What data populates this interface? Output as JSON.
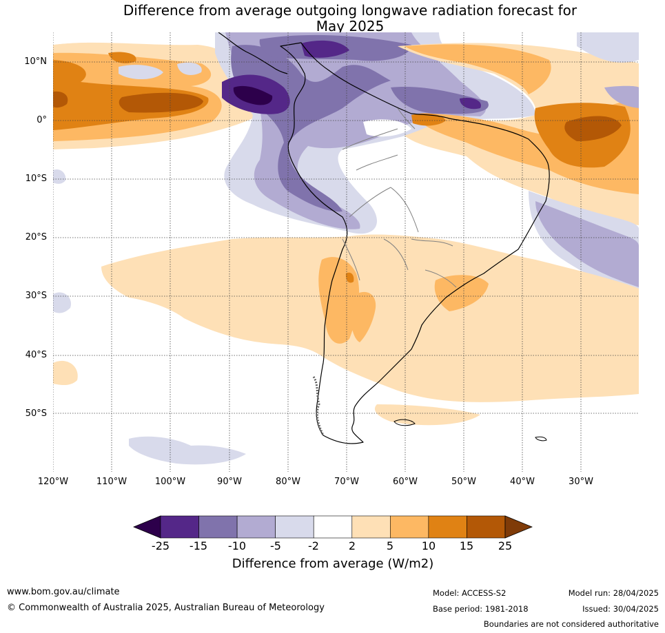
{
  "title_line1": "Difference from average outgoing longwave radiation forecast for",
  "title_line2": "May 2025",
  "lat_labels": [
    "10°N",
    "0°",
    "10°S",
    "20°S",
    "30°S",
    "40°S",
    "50°S"
  ],
  "lon_labels": [
    "120°W",
    "110°W",
    "100°W",
    "90°W",
    "80°W",
    "70°W",
    "60°W",
    "50°W",
    "40°W",
    "30°W"
  ],
  "colorbar": {
    "ticks": [
      "-25",
      "-15",
      "-10",
      "-5",
      "-2",
      "2",
      "5",
      "10",
      "15",
      "25"
    ],
    "colors": [
      "#2d004b",
      "#542788",
      "#8073ac",
      "#b2abd2",
      "#d8daeb",
      "#ffffff",
      "#fee0b6",
      "#fdb863",
      "#e08214",
      "#b35806",
      "#7f3b08"
    ],
    "label": "Difference from average (W/m2)"
  },
  "footer": {
    "url": "www.bom.gov.au/climate",
    "copyright": "© Commonwealth of Australia 2025, Australian Bureau of Meteorology",
    "model": "Model: ACCESS-S2",
    "base_period": "Base period: 1981-2018",
    "model_run": "Model run: 28/04/2025",
    "issued": "Issued: 30/04/2025",
    "disclaimer": "Boundaries are not considered authoritative"
  }
}
